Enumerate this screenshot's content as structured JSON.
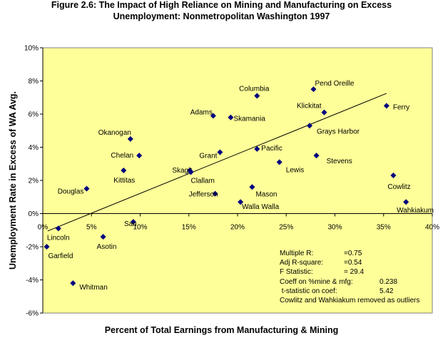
{
  "chart_data": {
    "type": "scatter",
    "title_line1": "Figure 2.6: The Impact of High Reliance on Mining and Manufacturing on Excess",
    "title_line2": "Unemployment: Nonmetropolitan Washington 1997",
    "xlabel": "Percent of Total Earnings from Manufacturing & Mining",
    "ylabel": "Unemployment Rate in Excess of WA Avg.",
    "xlim": [
      0,
      40
    ],
    "ylim": [
      -6,
      10
    ],
    "x_ticks": [
      0,
      5,
      10,
      15,
      20,
      25,
      30,
      35,
      40
    ],
    "x_tick_labels": [
      "0%",
      "5%",
      "10%",
      "15%",
      "20%",
      "25%",
      "30%",
      "35%",
      "40%"
    ],
    "y_ticks": [
      -6,
      -4,
      -2,
      0,
      2,
      4,
      6,
      8,
      10
    ],
    "y_tick_labels": [
      "-6%",
      "-4%",
      "-2%",
      "0%",
      "2%",
      "4%",
      "6%",
      "8%",
      "10%"
    ],
    "plot_background": "#ffff99",
    "marker_color": "#000080",
    "grid": false,
    "points": [
      {
        "label": "Pend Oreille",
        "x": 27.8,
        "y": 7.5
      },
      {
        "label": "Columbia",
        "x": 22.0,
        "y": 7.1
      },
      {
        "label": "Ferry",
        "x": 35.3,
        "y": 6.5
      },
      {
        "label": "Klickitat",
        "x": 28.9,
        "y": 6.1
      },
      {
        "label": "Adams",
        "x": 17.5,
        "y": 5.9
      },
      {
        "label": "Skamania",
        "x": 19.3,
        "y": 5.8
      },
      {
        "label": "Grays Harbor",
        "x": 27.4,
        "y": 5.3
      },
      {
        "label": "Okanogan",
        "x": 9.0,
        "y": 4.5
      },
      {
        "label": "Pacific",
        "x": 22.0,
        "y": 3.9
      },
      {
        "label": "Grant",
        "x": 18.2,
        "y": 3.7
      },
      {
        "label": "Chelan",
        "x": 9.9,
        "y": 3.5
      },
      {
        "label": "Stevens",
        "x": 28.1,
        "y": 3.5
      },
      {
        "label": "Lewis",
        "x": 24.3,
        "y": 3.1
      },
      {
        "label": "Skagit",
        "x": 15.1,
        "y": 2.6
      },
      {
        "label": "Kittitas",
        "x": 8.3,
        "y": 2.6
      },
      {
        "label": "Cowlitz",
        "x": 36.0,
        "y": 2.3
      },
      {
        "label": "Clallam",
        "x": 15.2,
        "y": 2.5
      },
      {
        "label": "Mason",
        "x": 21.5,
        "y": 1.6
      },
      {
        "label": "Douglas",
        "x": 4.5,
        "y": 1.5
      },
      {
        "label": "Jefferson",
        "x": 17.7,
        "y": 1.2
      },
      {
        "label": "Walla Walla",
        "x": 20.3,
        "y": 0.7
      },
      {
        "label": "Wahkiakum",
        "x": 37.3,
        "y": 0.7
      },
      {
        "label": "San Juan",
        "x": 9.3,
        "y": -0.5
      },
      {
        "label": "Lincoln",
        "x": 1.6,
        "y": -0.9
      },
      {
        "label": "Asotin",
        "x": 6.2,
        "y": -1.4
      },
      {
        "label": "Garfield",
        "x": 0.4,
        "y": -2.0
      },
      {
        "label": "Whitman",
        "x": 3.1,
        "y": -4.2
      }
    ],
    "label_texts": {
      "Pend Oreille": "Pend Oreille",
      "Columbia": "Columbia",
      "Ferry": "Ferry",
      "Klickitat": "Klickitat",
      "Adams": "Adams",
      "Skamania": "Skamania",
      "Grays Harbor": "Grays Harbor",
      "Okanogan": "Okanogan",
      "Pacific": "Pacific",
      "Grant": "Grant",
      "Chelan": "Chelan",
      "Stevens": "Stevens",
      "Lewis": "Lewis",
      "Skagit": "Skagit",
      "Kittitas": "Kittitas",
      "Cowlitz": "Cowlitz",
      "Clallam": "Clallam",
      "Mason": "Mason",
      "Douglas": "Douglas",
      "Jefferson": "Jefferson",
      "Walla Walla": "Walla Walla",
      "Wahkiakum": "Wahkiakum",
      "San Juan": "San",
      "Lincoln": "Lincoln",
      "Asotin": "Asotin",
      "Garfield": "Garfield",
      "Whitman": "Whitman"
    },
    "trendline": {
      "x": [
        0.5,
        35.3
      ],
      "y": [
        -1.05,
        7.25
      ]
    },
    "stats": [
      {
        "label": "Multiple R:",
        "value": "=0.75"
      },
      {
        "label": "Adj R-square:",
        "value": "=0.54"
      },
      {
        "label": "F Statistic:",
        "value": "= 29.4"
      },
      {
        "label": "Coeff on %mine & mfg:",
        "value": "0.238"
      },
      {
        "label": " t-statistic on coef:",
        "value": "5.42"
      },
      {
        "label": "Cowlitz and Wahkiakum removed as outliers",
        "value": ""
      }
    ]
  }
}
